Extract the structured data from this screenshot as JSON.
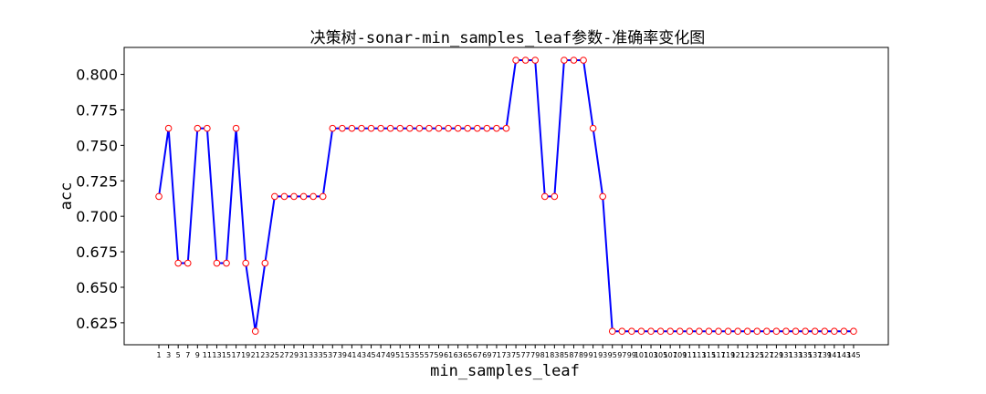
{
  "chart_data": {
    "type": "line",
    "title": "决策树-sonar-min_samples_leaf参数-准确率变化图",
    "xlabel": "min_samples_leaf",
    "ylabel": "acc",
    "x": [
      1,
      3,
      5,
      7,
      9,
      11,
      13,
      15,
      17,
      19,
      21,
      23,
      25,
      27,
      29,
      31,
      33,
      35,
      37,
      39,
      41,
      43,
      45,
      47,
      49,
      51,
      53,
      55,
      57,
      59,
      61,
      63,
      65,
      67,
      69,
      71,
      73,
      75,
      77,
      79,
      81,
      83,
      85,
      87,
      89,
      91,
      93,
      95,
      97,
      99,
      101,
      103,
      105,
      107,
      109,
      111,
      113,
      115,
      117,
      119,
      121,
      123,
      125,
      127,
      129,
      131,
      133,
      135,
      137,
      139,
      141,
      143,
      145
    ],
    "series": [
      {
        "values": [
          0.714,
          0.762,
          0.667,
          0.667,
          0.762,
          0.762,
          0.667,
          0.667,
          0.762,
          0.667,
          0.619,
          0.667,
          0.714,
          0.714,
          0.714,
          0.714,
          0.714,
          0.714,
          0.762,
          0.762,
          0.762,
          0.762,
          0.762,
          0.762,
          0.762,
          0.762,
          0.762,
          0.762,
          0.762,
          0.762,
          0.762,
          0.762,
          0.762,
          0.762,
          0.762,
          0.762,
          0.762,
          0.81,
          0.81,
          0.81,
          0.714,
          0.714,
          0.81,
          0.81,
          0.81,
          0.762,
          0.714,
          0.619,
          0.619,
          0.619,
          0.619,
          0.619,
          0.619,
          0.619,
          0.619,
          0.619,
          0.619,
          0.619,
          0.619,
          0.619,
          0.619,
          0.619,
          0.619,
          0.619,
          0.619,
          0.619,
          0.619,
          0.619,
          0.619,
          0.619,
          0.619,
          0.619,
          0.619
        ],
        "line_color": "#0000ff",
        "marker_edge_color": "#ff0000",
        "marker_face_color": "#ffffff"
      }
    ],
    "yticks": [
      "0.625",
      "0.650",
      "0.675",
      "0.700",
      "0.725",
      "0.750",
      "0.775",
      "0.800"
    ],
    "ylim": [
      0.6095,
      0.819
    ],
    "grid": false,
    "legend": "none"
  }
}
